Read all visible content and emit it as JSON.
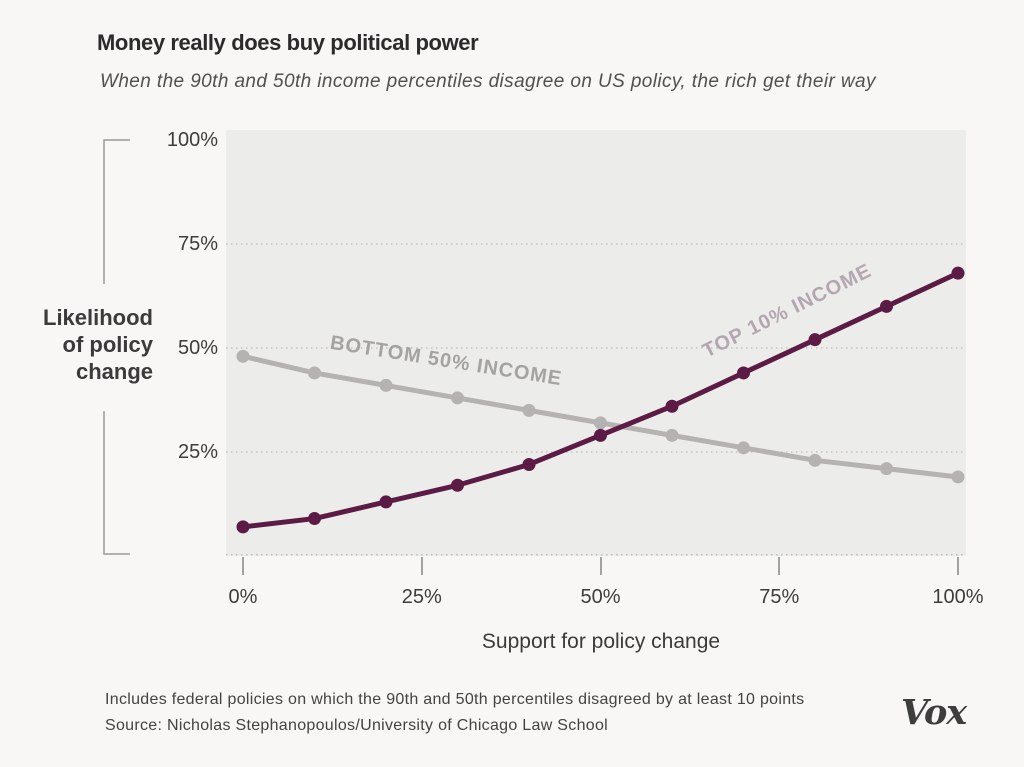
{
  "header": {
    "title": "Money really does buy political power",
    "subtitle": "When the 90th and 50th income percentiles disagree on US policy, the rich get their way"
  },
  "chart_data": {
    "type": "line",
    "title": "Money really does buy political power",
    "x": [
      0,
      10,
      20,
      30,
      40,
      50,
      60,
      70,
      80,
      90,
      100
    ],
    "series": [
      {
        "name": "TOP 10% INCOME",
        "values": [
          7,
          9,
          13,
          17,
          22,
          29,
          36,
          44,
          52,
          60,
          68
        ],
        "color": "#5c1b45"
      },
      {
        "name": "BOTTOM 50% INCOME",
        "values": [
          48,
          44,
          41,
          38,
          35,
          32,
          29,
          26,
          23,
          21,
          19
        ],
        "color": "#b5b3b1"
      }
    ],
    "xlabel": "Support for policy change",
    "ylabel": "Likelihood of policy change",
    "xlim": [
      0,
      100
    ],
    "ylim": [
      0,
      100
    ],
    "x_ticks": [
      {
        "label": "0%",
        "value": 0
      },
      {
        "label": "25%",
        "value": 25
      },
      {
        "label": "50%",
        "value": 50
      },
      {
        "label": "75%",
        "value": 75
      },
      {
        "label": "100%",
        "value": 100
      }
    ],
    "y_ticks": [
      {
        "label": "100%",
        "value": 100
      },
      {
        "label": "75%",
        "value": 75
      },
      {
        "label": "50%",
        "value": 50
      },
      {
        "label": "25%",
        "value": 25
      }
    ],
    "grid": "horizontal dotted lines at 25%, 50%, 75% and baseline",
    "legend_position": "inline rotated labels on lines"
  },
  "axis": {
    "ylabel_lines": [
      "Likelihood",
      "of policy",
      "change"
    ],
    "xlabel": "Support for policy change"
  },
  "series_labels": {
    "top": "TOP 10% INCOME",
    "bottom": "BOTTOM 50% INCOME"
  },
  "footer": {
    "note": "Includes federal policies on which the 90th and 50th percentiles disagreed by at least 10 points",
    "source": "Source: Nicholas Stephanopoulos/University of Chicago Law School",
    "logo_text": "Vox"
  },
  "colors": {
    "accent_purple": "#5c1b45",
    "line_gray": "#b5b3b1",
    "grid_dot": "#c5c4c2",
    "plot_bg": "#ececea",
    "page_bg": "#f8f7f5"
  }
}
